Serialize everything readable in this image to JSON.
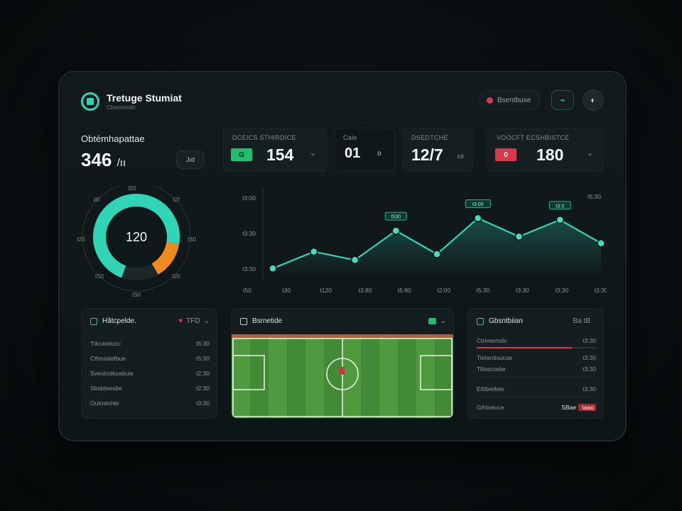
{
  "header": {
    "title": "Tretuge Stumiat",
    "subtitle": "Ctsonmsdic",
    "status_label": "Bsentbuse",
    "icon_button_glyph": "⌁",
    "avatar_glyph": "◐"
  },
  "summary": {
    "label": "Obtémhapattae",
    "value": "346",
    "unit": "/ıı",
    "chip": "Jıd"
  },
  "stats": [
    {
      "title": "DCEICS STHIRDICE",
      "value": "154",
      "badge": "G",
      "badge_color": "#1fbf6f"
    },
    {
      "title": "Cale",
      "value": "01",
      "suffix": "o"
    },
    {
      "title": "DSEDTCHE",
      "value": "12/7",
      "suffix": "±ö"
    },
    {
      "title": "VOOCFT ECSHBISTCE",
      "value": "180",
      "badge": "0",
      "badge_color": "#d8384a"
    }
  ],
  "donut": {
    "center_label": "120",
    "segments": [
      {
        "name": "primary",
        "fraction": 0.72,
        "color": "#2fd6b5"
      },
      {
        "name": "secondary",
        "fraction": 0.14,
        "color": "#f08a1c"
      }
    ],
    "ticks": [
      "t20",
      "t2f",
      "tS0",
      "t20",
      "tS0",
      "tS0",
      "t20",
      "d0"
    ]
  },
  "chart_data": {
    "type": "area",
    "x_tick_labels": [
      "t50",
      "t30",
      "t120",
      "t3:80",
      "t5:80",
      "t2:00",
      "t5:30",
      "t3:30",
      "t3:30",
      "t3:30"
    ],
    "y_tick_labels": [
      "t3:00",
      "t3:30",
      "t3:30"
    ],
    "top_right_label": "t5:30",
    "series": [
      {
        "values": [
          10,
          30,
          20,
          55,
          27,
          70,
          48,
          68,
          40
        ],
        "color": "#2fd6b5"
      }
    ],
    "ylim": [
      0,
      100
    ],
    "annotations": [
      {
        "index": 3,
        "label": "t530"
      },
      {
        "index": 5,
        "label": "t3:00"
      },
      {
        "index": 7,
        "label": "t3:3"
      }
    ],
    "grid": false
  },
  "panels": {
    "left": {
      "title": "Hătcpelde.",
      "control": "TFD",
      "rows": [
        {
          "label": "Ttkcatelucc",
          "value": "t5:30"
        },
        {
          "label": "Cthnsstefbue",
          "value": "t5:30"
        },
        {
          "label": "Sveotodezebuie",
          "value": "t2:30"
        },
        {
          "label": "Sbsbteesbe",
          "value": "t2:30"
        },
        {
          "label": "Outoslchte",
          "value": "t3:30"
        }
      ]
    },
    "center": {
      "title": "Bsrnetide",
      "control": "G"
    },
    "right": {
      "title": "Gbsntbiian",
      "control": "Ba tB",
      "rows": [
        {
          "label": "Ctrimertolic",
          "value": "t3:30",
          "bar": 0.8
        },
        {
          "label": "Tietantisucae",
          "value": "t3:30"
        },
        {
          "label": "Tittwtctebe",
          "value": "t3:30"
        },
        {
          "label": "Elttbieilele",
          "value": "t3:30"
        },
        {
          "label": "Glhtoeuce",
          "value": "SBae",
          "alert": "taao"
        }
      ]
    }
  }
}
